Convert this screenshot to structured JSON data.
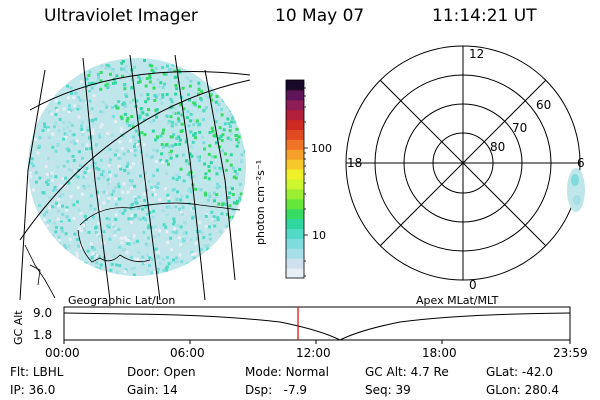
{
  "header": {
    "instrument": "Ultraviolet Imager",
    "date": "10 May 07",
    "time": "11:14:21 UT"
  },
  "colorbar": {
    "label": "photon cm⁻²s⁻¹",
    "ticks": [
      "100",
      "10"
    ],
    "colors": [
      "#e8eef6",
      "#cfe0ee",
      "#a6e0e6",
      "#7fdcdc",
      "#52d9c8",
      "#2fd6a0",
      "#39dc62",
      "#66e63a",
      "#9bee32",
      "#cdf62e",
      "#f0f02a",
      "#f6c82a",
      "#f5a02a",
      "#ef7428",
      "#e24a24",
      "#cd2a22",
      "#b21f3a",
      "#8e1c56",
      "#5e1456",
      "#1a0a2a"
    ]
  },
  "left_panel": {
    "label": "Geographic Lat/Lon"
  },
  "right_panel": {
    "label": "Apex MLat/MLT",
    "mlt_labels": [
      "12",
      "18",
      "6",
      "0"
    ],
    "lat_labels": [
      "60",
      "70",
      "80"
    ]
  },
  "timeline": {
    "ylabel": "GC Alt",
    "y_values": [
      "9.0",
      "1.8"
    ],
    "x_ticks": [
      "00:00",
      "06:00",
      "12:00",
      "18:00",
      "23:59"
    ],
    "current_marker": "11:14"
  },
  "footer": {
    "flt_label": "Flt:",
    "flt_value": "LBHL",
    "ip_label": "IP:",
    "ip_value": "36.0",
    "door_label": "Door:",
    "door_value": "Open",
    "gain_label": "Gain:",
    "gain_value": "14",
    "mode_label": "Mode:",
    "mode_value": "Normal",
    "dsp_label": "Dsp:",
    "dsp_value": "-7.9",
    "gcalt_label": "GC Alt:",
    "gcalt_value": "4.7 Re",
    "seq_label": "Seq:",
    "seq_value": "39",
    "glat_label": "GLat:",
    "glat_value": "-42.0",
    "glon_label": "GLon:",
    "glon_value": "280.4"
  }
}
